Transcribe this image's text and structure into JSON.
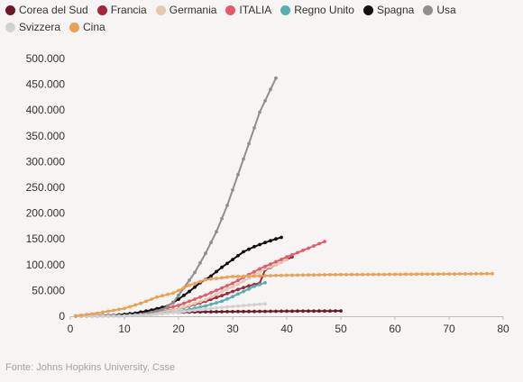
{
  "chart_data": {
    "type": "line",
    "xlim": [
      0,
      80
    ],
    "ylim": [
      0,
      500000
    ],
    "x_ticks": [
      0,
      10,
      20,
      30,
      40,
      50,
      60,
      70,
      80
    ],
    "y_ticks": [
      0,
      50000,
      100000,
      150000,
      200000,
      250000,
      300000,
      350000,
      400000,
      450000,
      500000
    ],
    "y_tick_labels": [
      "0",
      "50.000",
      "100.000",
      "150.000",
      "200.000",
      "250.000",
      "300.000",
      "350.000",
      "400.000",
      "450.000",
      "500.000"
    ],
    "x_tick_labels": [
      "0",
      "10",
      "20",
      "30",
      "40",
      "50",
      "60",
      "70",
      "80"
    ],
    "grid": false,
    "legend_placement": "top",
    "source": "Fonte: Johns Hopkins University, Csse",
    "series": [
      {
        "name": "Corea del Sud",
        "color": "#6b1a2a",
        "x": [
          1,
          10,
          14,
          17,
          20,
          24,
          30,
          40,
          50
        ],
        "y": [
          100,
          800,
          3700,
          6500,
          7800,
          8400,
          9000,
          9800,
          10300
        ]
      },
      {
        "name": "Francia",
        "color": "#a3263d",
        "x": [
          1,
          10,
          15,
          20,
          25,
          28,
          31,
          33,
          35,
          36,
          37,
          38,
          39,
          41
        ],
        "y": [
          100,
          1800,
          6000,
          14000,
          29000,
          40000,
          52000,
          59000,
          64000,
          90000,
          95000,
          100000,
          105000,
          115000
        ]
      },
      {
        "name": "Germania",
        "color": "#e3c9b2",
        "x": [
          1,
          10,
          15,
          20,
          25,
          28,
          31,
          34,
          36,
          38,
          40
        ],
        "y": [
          100,
          1500,
          5000,
          14000,
          32000,
          48000,
          62000,
          80000,
          92000,
          100000,
          110000
        ]
      },
      {
        "name": "ITALIA",
        "color": "#e55a6b",
        "x": [
          1,
          10,
          15,
          20,
          25,
          30,
          35,
          40,
          44,
          47
        ],
        "y": [
          100,
          2500,
          9000,
          21000,
          41000,
          64000,
          92000,
          115000,
          132000,
          145000
        ]
      },
      {
        "name": "Regno Unito",
        "color": "#57aeb2",
        "x": [
          1,
          10,
          15,
          20,
          25,
          28,
          30,
          32,
          34,
          36
        ],
        "y": [
          100,
          800,
          3000,
          8500,
          20000,
          29000,
          38000,
          48000,
          58000,
          65000
        ]
      },
      {
        "name": "Spagna",
        "color": "#111111",
        "x": [
          1,
          8,
          12,
          15,
          18,
          20,
          22,
          24,
          26,
          28,
          30,
          32,
          34,
          36,
          38,
          39
        ],
        "y": [
          100,
          1500,
          6000,
          12000,
          20000,
          33000,
          48000,
          65000,
          78000,
          95000,
          110000,
          125000,
          135000,
          143000,
          150000,
          153000
        ]
      },
      {
        "name": "Usa",
        "color": "#8f8f8f",
        "x": [
          1,
          10,
          14,
          17,
          19,
          21,
          23,
          25,
          27,
          29,
          31,
          33,
          35,
          37,
          38
        ],
        "y": [
          100,
          1000,
          4500,
          13000,
          26000,
          55000,
          85000,
          122000,
          164000,
          215000,
          275000,
          335000,
          396000,
          440000,
          462000
        ]
      },
      {
        "name": "Svizzera",
        "color": "#d2d2d2",
        "x": [
          1,
          10,
          15,
          20,
          25,
          30,
          36
        ],
        "y": [
          100,
          800,
          3000,
          8000,
          14000,
          19000,
          24000
        ]
      },
      {
        "name": "Cina",
        "color": "#eca054",
        "x": [
          1,
          5,
          10,
          13,
          16,
          19,
          22,
          25,
          30,
          40,
          50,
          60,
          70,
          78
        ],
        "y": [
          500,
          6000,
          15000,
          25000,
          37000,
          45000,
          60000,
          71000,
          77000,
          79500,
          80800,
          81300,
          82000,
          82500
        ]
      }
    ]
  }
}
